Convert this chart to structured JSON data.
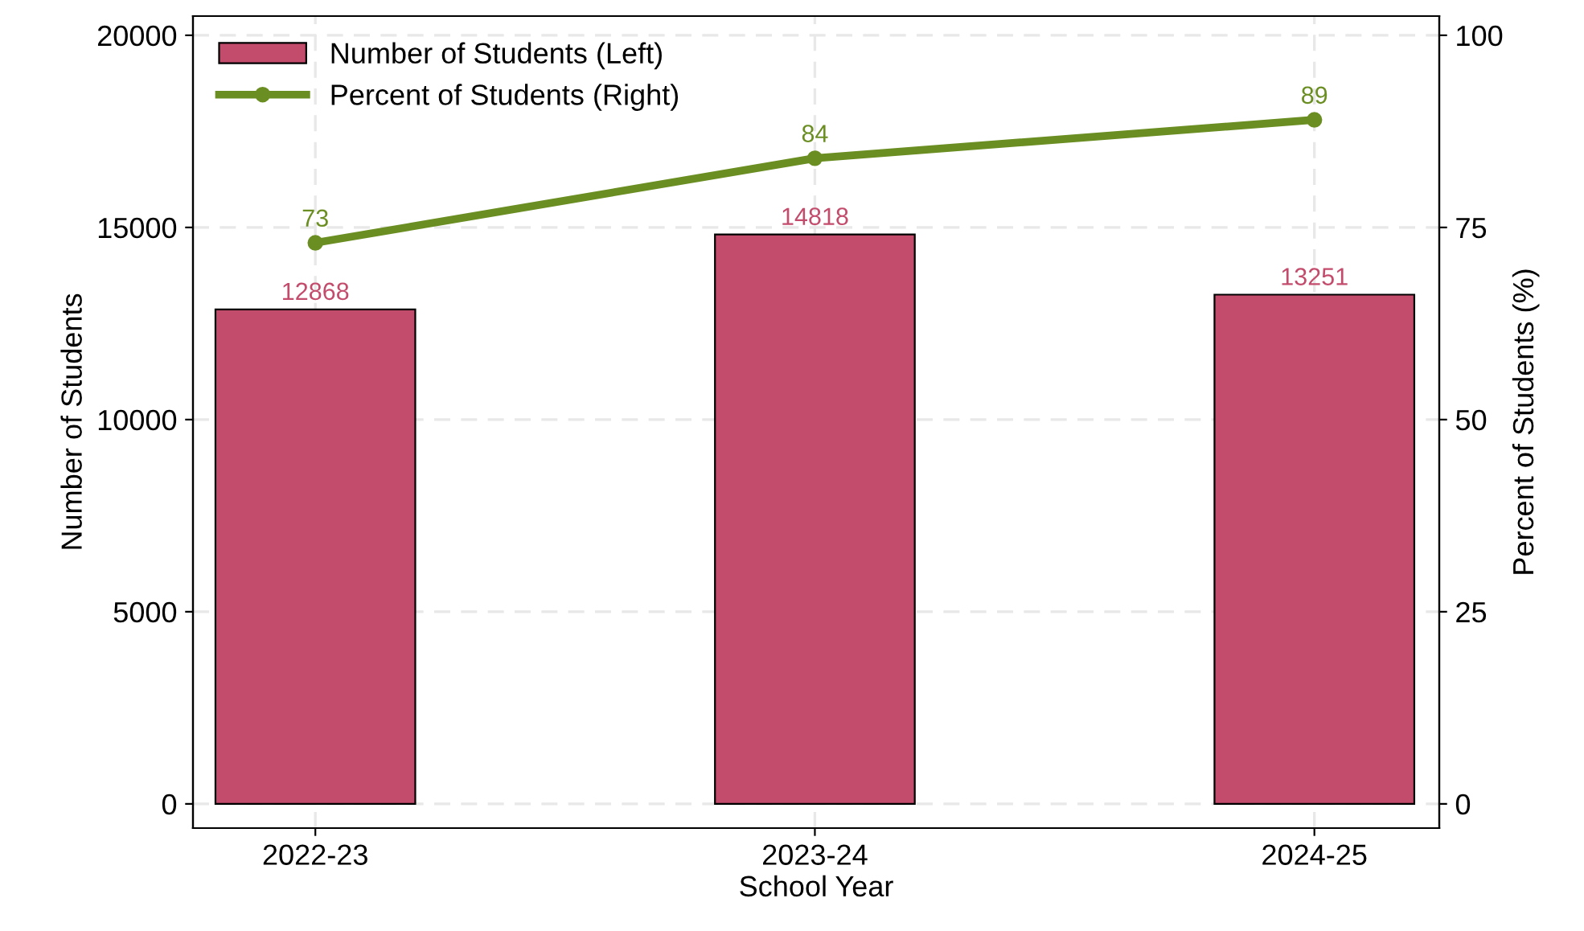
{
  "chart_data": {
    "type": "bar",
    "xlabel": "School Year",
    "ylabel": "Number of Students",
    "y2label": "Percent of Students (%)",
    "categories": [
      "2022-23",
      "2023-24",
      "2024-25"
    ],
    "series": [
      {
        "name": "Number of Students (Left)",
        "color": "#c34b6b",
        "values": [
          12868,
          14818,
          13251
        ]
      },
      {
        "name": "Percent of Students (Right)",
        "type": "line",
        "axis": "y2",
        "color": "#6b8e23",
        "values": [
          73,
          84,
          89
        ]
      }
    ],
    "ylim": [
      -630,
      20500
    ],
    "yticks": [
      0,
      5000,
      10000,
      15000,
      20000
    ],
    "y2lim": [
      -3.15,
      102.5
    ],
    "y2ticks": [
      0,
      25,
      50,
      75,
      100
    ],
    "data_labels": true,
    "grid": true,
    "legend": "top left",
    "marker": "circle",
    "line_style": "solid"
  }
}
